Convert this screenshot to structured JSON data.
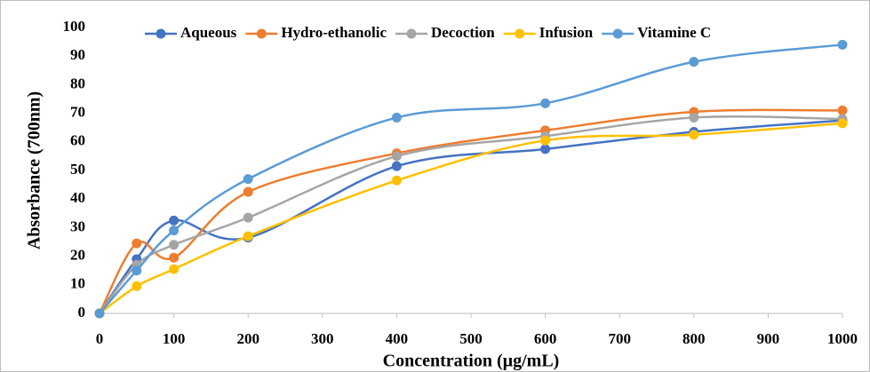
{
  "chart_data": {
    "type": "line",
    "x_label": "Concentration (µg/mL)",
    "y_label": "Absorbance (700nm)",
    "x": [
      0,
      50,
      100,
      200,
      400,
      600,
      800,
      1000
    ],
    "series": [
      {
        "name": "Aqueous",
        "color": "#4472c4",
        "values": [
          0,
          19,
          32.5,
          26.5,
          51.5,
          57.5,
          63.5,
          67.5
        ]
      },
      {
        "name": "Hydro-ethanolic",
        "color": "#ed7d31",
        "values": [
          0,
          24.5,
          19.5,
          42.5,
          56,
          64,
          70.5,
          71
        ]
      },
      {
        "name": "Decoction",
        "color": "#a5a5a5",
        "values": [
          0,
          17,
          24,
          33.5,
          55,
          62,
          68.5,
          68
        ]
      },
      {
        "name": "Infusion",
        "color": "#ffc000",
        "values": [
          0,
          9.5,
          15.5,
          27,
          46.5,
          60.5,
          62.5,
          66.5
        ]
      },
      {
        "name": "Vitamine C",
        "color": "#5b9bd5",
        "values": [
          0,
          15,
          29,
          47,
          68.5,
          73.5,
          88,
          94
        ]
      }
    ],
    "xlim": [
      0,
      1000
    ],
    "xticks": [
      0,
      100,
      200,
      300,
      400,
      500,
      600,
      700,
      800,
      900,
      1000
    ],
    "ylim": [
      0,
      100
    ],
    "yticks": [
      0,
      10,
      20,
      30,
      40,
      50,
      60,
      70,
      80,
      90,
      100
    ],
    "grid": false,
    "smooth": true,
    "markers": true,
    "legend": "top"
  }
}
